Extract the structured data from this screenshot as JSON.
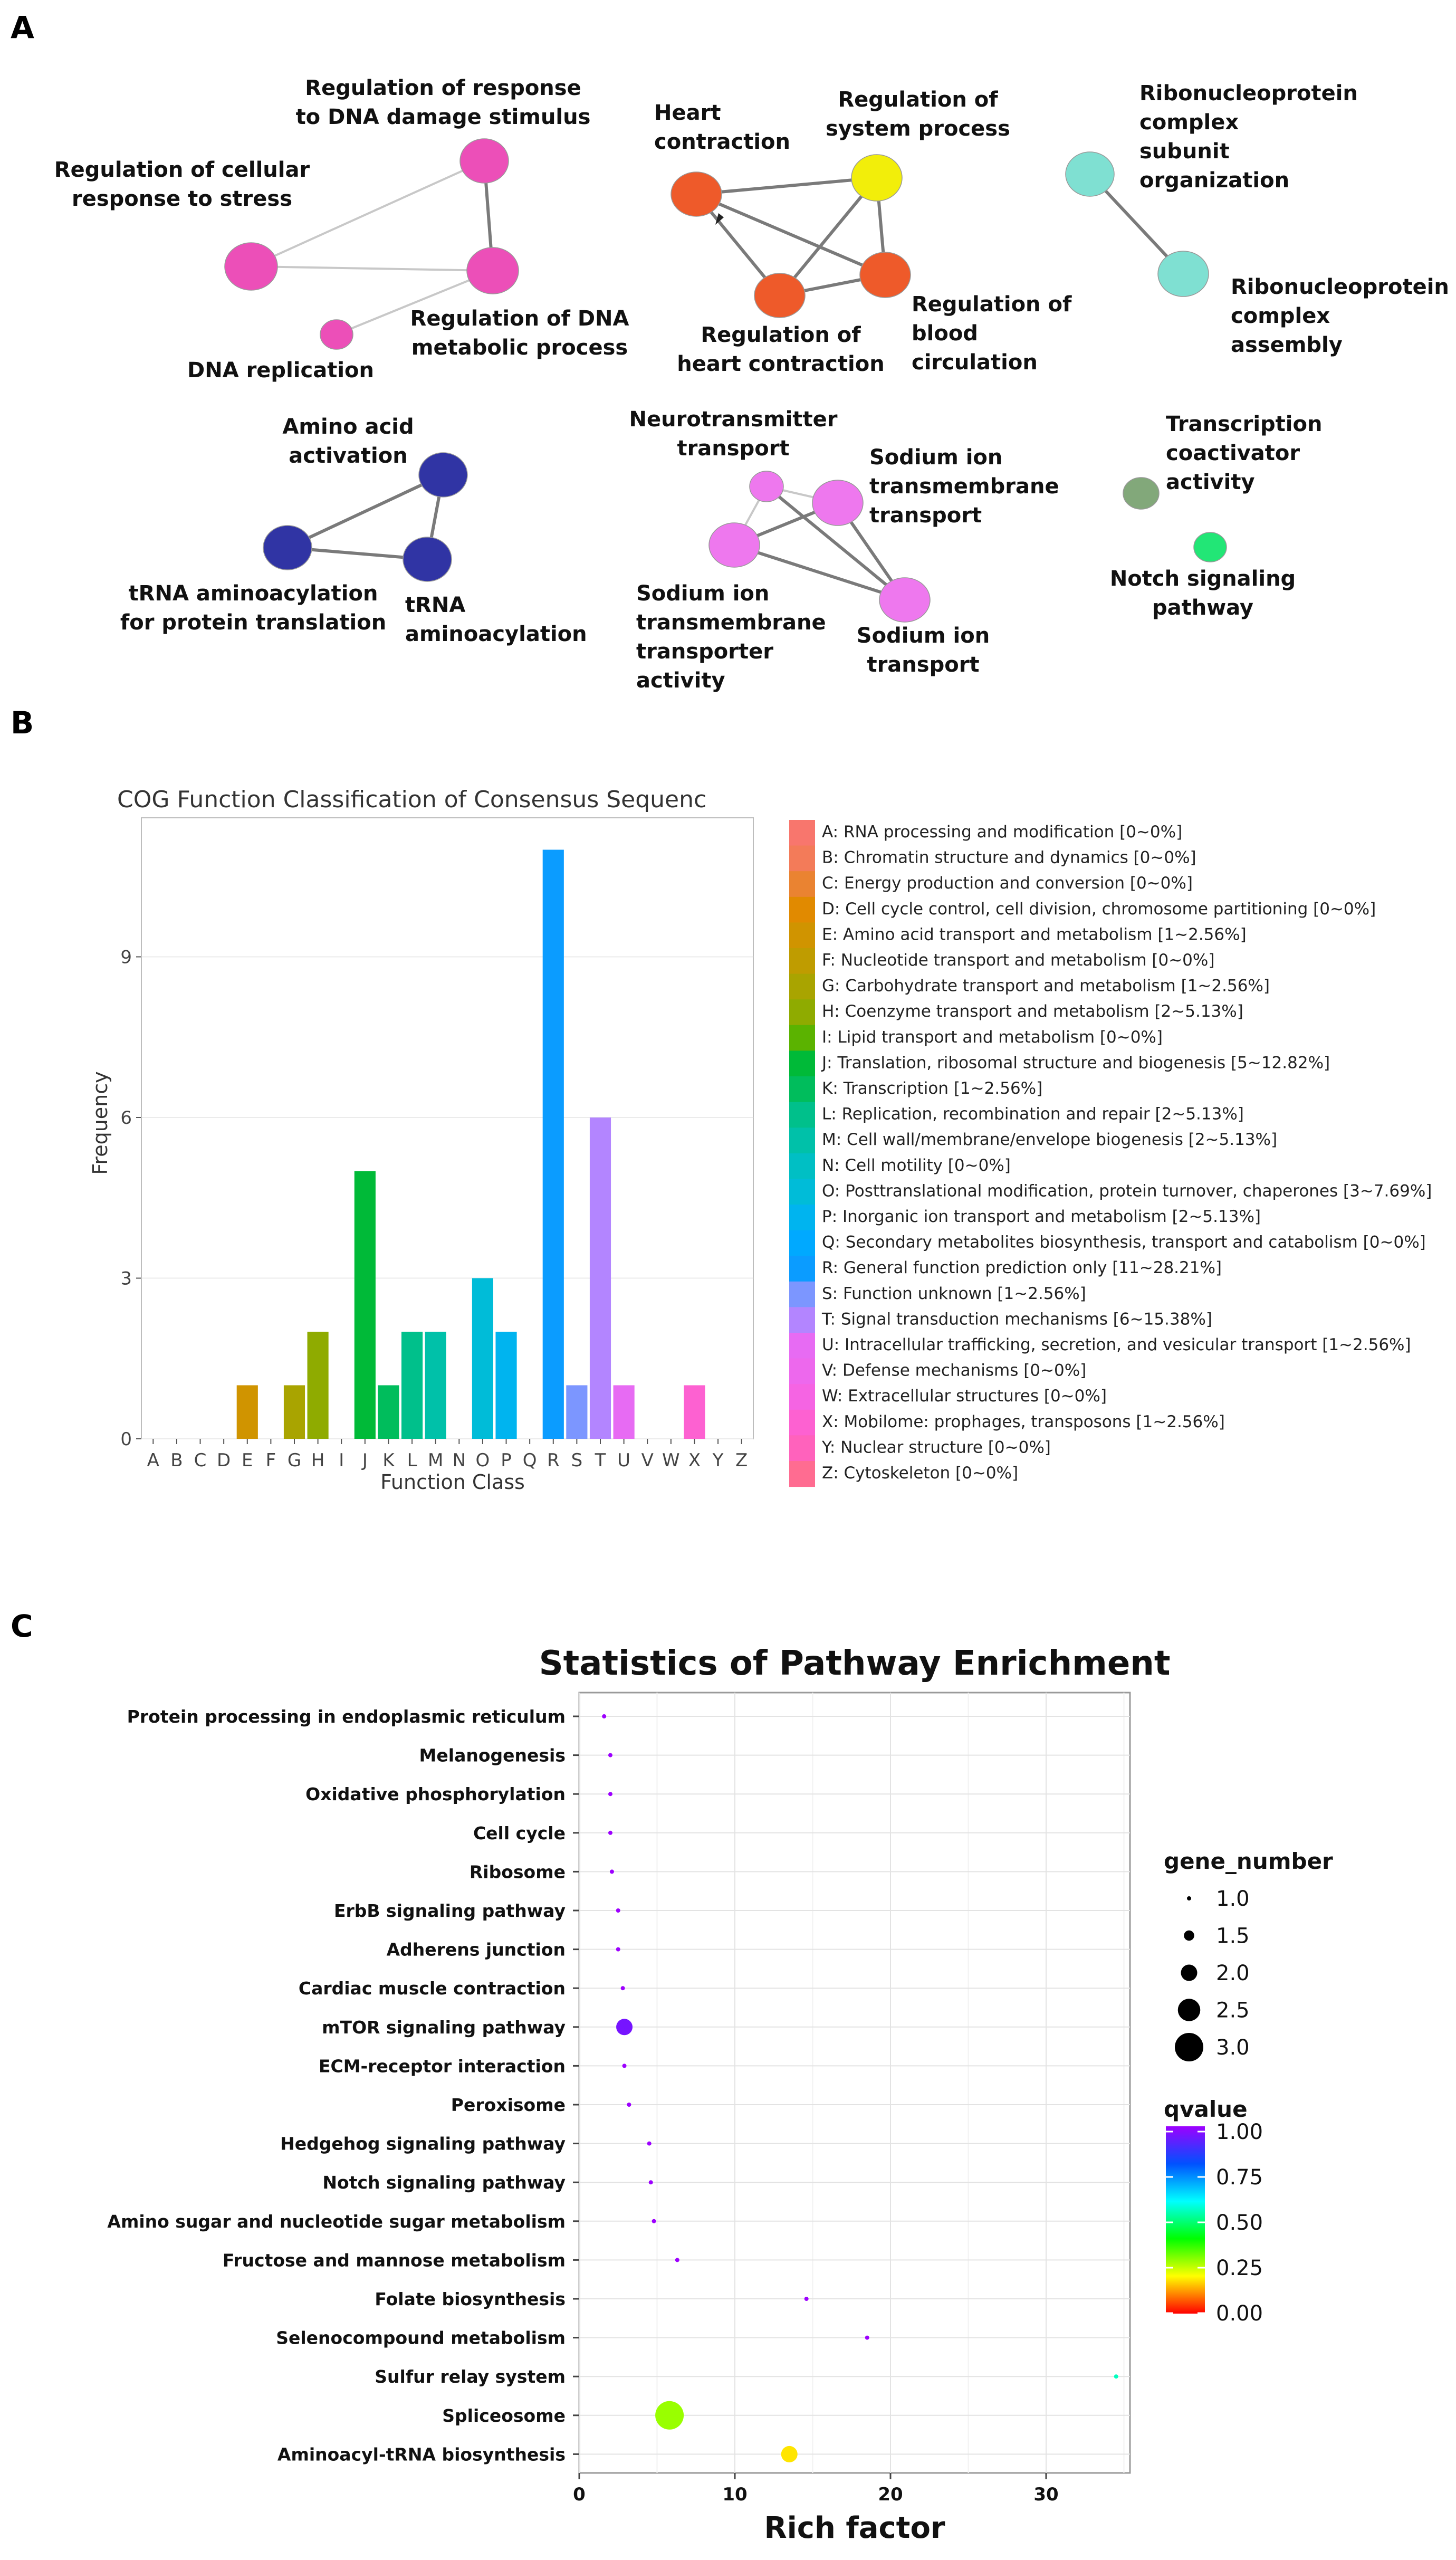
{
  "panels": {
    "a": "A",
    "b": "B",
    "c": "C"
  },
  "network": {
    "nodes": [
      {
        "id": "n1",
        "color": "#ec4fb8",
        "label": [
          "Regulation of response",
          "to DNA damage stimulus"
        ]
      },
      {
        "id": "n2",
        "color": "#ec4fb8",
        "label": [
          "Regulation of cellular",
          "response to stress"
        ]
      },
      {
        "id": "n3",
        "color": "#ec4fb8",
        "label": [
          "Regulation of DNA",
          "metabolic process"
        ]
      },
      {
        "id": "n4",
        "color": "#ec4fb8",
        "label": [
          "DNA replication"
        ]
      },
      {
        "id": "n5",
        "color": "#ee5a2a",
        "label": [
          "Heart",
          "contraction"
        ]
      },
      {
        "id": "n6",
        "color": "#f2ee0a",
        "label": [
          "Regulation of",
          "system process"
        ]
      },
      {
        "id": "n7",
        "color": "#ee5a2a",
        "label": [
          "Regulation of",
          "heart contraction"
        ]
      },
      {
        "id": "n8",
        "color": "#ee5a2a",
        "label": [
          "Regulation of",
          "blood",
          "circulation"
        ]
      },
      {
        "id": "n9",
        "color": "#7fe0d2",
        "label": [
          "Ribonucleoprotein",
          "complex",
          "subunit",
          "organization"
        ]
      },
      {
        "id": "n10",
        "color": "#7fe0d2",
        "label": [
          "Ribonucleoprotein",
          "complex",
          "assembly"
        ]
      },
      {
        "id": "n11",
        "color": "#3034a4",
        "label": [
          "Amino acid",
          "activation"
        ]
      },
      {
        "id": "n12",
        "color": "#3034a4",
        "label": [
          "tRNA aminoacylation",
          "for protein translation"
        ]
      },
      {
        "id": "n13",
        "color": "#3034a4",
        "label": [
          "tRNA",
          "aminoacylation"
        ]
      },
      {
        "id": "n14",
        "color": "#ee78ee",
        "label": [
          "Neurotransmitter",
          "transport"
        ]
      },
      {
        "id": "n15",
        "color": "#ee78ee",
        "label": [
          "Sodium ion",
          "transmembrane",
          "transport"
        ]
      },
      {
        "id": "n16",
        "color": "#ee78ee",
        "label": [
          "Sodium ion",
          "transmembrane",
          "transporter",
          "activity"
        ]
      },
      {
        "id": "n17",
        "color": "#ee78ee",
        "label": [
          "Sodium ion",
          "transport"
        ]
      },
      {
        "id": "n18",
        "color": "#82a87a",
        "label": [
          "Transcription",
          "coactivator",
          "activity"
        ]
      },
      {
        "id": "n19",
        "color": "#22e676",
        "label": [
          "Notch signaling",
          "pathway"
        ]
      }
    ],
    "edges": [
      [
        "n1",
        "n2"
      ],
      [
        "n1",
        "n3"
      ],
      [
        "n2",
        "n3"
      ],
      [
        "n3",
        "n4"
      ],
      [
        "n5",
        "n6"
      ],
      [
        "n5",
        "n7"
      ],
      [
        "n5",
        "n8"
      ],
      [
        "n6",
        "n7"
      ],
      [
        "n6",
        "n8"
      ],
      [
        "n7",
        "n8"
      ],
      [
        "n9",
        "n10"
      ],
      [
        "n11",
        "n12"
      ],
      [
        "n11",
        "n13"
      ],
      [
        "n12",
        "n13"
      ],
      [
        "n14",
        "n15"
      ],
      [
        "n14",
        "n16"
      ],
      [
        "n14",
        "n17"
      ],
      [
        "n15",
        "n16"
      ],
      [
        "n15",
        "n17"
      ],
      [
        "n16",
        "n17"
      ]
    ]
  },
  "chart_data": [
    {
      "type": "bar",
      "title": "COG Function Classification of Consensus Sequenc",
      "xlabel": "Function Class",
      "ylabel": "Frequency",
      "ylim": [
        0,
        11.5
      ],
      "yticks": [
        0,
        3,
        6,
        9
      ],
      "categories": [
        "A",
        "B",
        "C",
        "D",
        "E",
        "F",
        "G",
        "H",
        "I",
        "J",
        "K",
        "L",
        "M",
        "N",
        "O",
        "P",
        "Q",
        "R",
        "S",
        "T",
        "U",
        "V",
        "W",
        "X",
        "Y",
        "Z"
      ],
      "values": [
        0,
        0,
        0,
        0,
        1,
        0,
        1,
        2,
        0,
        5,
        1,
        2,
        2,
        0,
        3,
        2,
        0,
        11,
        1,
        6,
        1,
        0,
        0,
        1,
        0,
        0
      ],
      "colors": [
        "#f8766d",
        "#f37b59",
        "#ea8331",
        "#e18a00",
        "#d09400",
        "#bf9c00",
        "#a9a400",
        "#8fab00",
        "#5bb300",
        "#00ba38",
        "#00bd5c",
        "#00c08b",
        "#00c1a9",
        "#00bfc4",
        "#00bcd8",
        "#00b4ef",
        "#00a9ff",
        "#0b9cff",
        "#7c96ff",
        "#b385ff",
        "#e76bf3",
        "#ed68ed",
        "#f564e3",
        "#fd61d1",
        "#ff62bc",
        "#ff6c91"
      ],
      "legend": [
        "A: RNA processing and modification [0~0%]",
        "B: Chromatin structure and dynamics [0~0%]",
        "C: Energy production and conversion [0~0%]",
        "D: Cell cycle control, cell division, chromosome partitioning [0~0%]",
        "E: Amino acid transport and metabolism [1~2.56%]",
        "F: Nucleotide transport and metabolism [0~0%]",
        "G: Carbohydrate transport and metabolism [1~2.56%]",
        "H: Coenzyme transport and metabolism [2~5.13%]",
        "I: Lipid transport and metabolism [0~0%]",
        "J: Translation, ribosomal structure and biogenesis [5~12.82%]",
        "K: Transcription [1~2.56%]",
        "L: Replication, recombination and repair [2~5.13%]",
        "M: Cell wall/membrane/envelope biogenesis [2~5.13%]",
        "N: Cell motility [0~0%]",
        "O: Posttranslational modification, protein turnover, chaperones [3~7.69%]",
        "P: Inorganic ion transport and metabolism [2~5.13%]",
        "Q: Secondary metabolites biosynthesis, transport and catabolism [0~0%]",
        "R: General function prediction only [11~28.21%]",
        "S: Function unknown [1~2.56%]",
        "T: Signal transduction mechanisms [6~15.38%]",
        "U: Intracellular trafficking, secretion, and vesicular transport [1~2.56%]",
        "V: Defense mechanisms [0~0%]",
        "W: Extracellular structures [0~0%]",
        "X: Mobilome: prophages, transposons [1~2.56%]",
        "Y: Nuclear structure [0~0%]",
        "Z: Cytoskeleton [0~0%]"
      ]
    },
    {
      "type": "scatter",
      "title": "Statistics of Pathway Enrichment",
      "xlabel": "Rich factor",
      "xlim": [
        0,
        36
      ],
      "xticks": [
        0,
        10,
        20,
        30
      ],
      "categories": [
        "Protein processing in endoplasmic reticulum",
        "Melanogenesis",
        "Oxidative phosphorylation",
        "Cell cycle",
        "Ribosome",
        "ErbB signaling pathway",
        "Adherens junction",
        "Cardiac muscle contraction",
        "mTOR signaling pathway",
        "ECM-receptor interaction",
        "Peroxisome",
        "Hedgehog signaling pathway",
        "Notch signaling pathway",
        "Amino sugar and nucleotide sugar metabolism",
        "Fructose and mannose metabolism",
        "Folate biosynthesis",
        "Selenocompound metabolism",
        "Sulfur relay system",
        "Spliceosome",
        "Aminoacyl-tRNA biosynthesis"
      ],
      "x": [
        1.6,
        2.0,
        2.0,
        2.0,
        2.1,
        2.5,
        2.5,
        2.8,
        2.9,
        2.9,
        3.2,
        4.5,
        4.6,
        4.8,
        6.3,
        14.6,
        18.5,
        34.5,
        5.8,
        13.5
      ],
      "gene_number": [
        1,
        1,
        1,
        1,
        1,
        1,
        1,
        1,
        2,
        1,
        1,
        1,
        1,
        1,
        1,
        1,
        1,
        1,
        3,
        2
      ],
      "qvalue": [
        1.0,
        1.0,
        1.0,
        1.0,
        1.0,
        1.0,
        1.0,
        1.0,
        0.95,
        1.0,
        1.0,
        1.0,
        1.0,
        1.0,
        1.0,
        1.0,
        1.0,
        0.55,
        0.28,
        0.18
      ],
      "legend_size": {
        "title": "gene_number",
        "values": [
          1.0,
          1.5,
          2.0,
          2.5,
          3.0
        ],
        "labels": [
          "1.0",
          "1.5",
          "2.0",
          "2.5",
          "3.0"
        ]
      },
      "legend_color": {
        "title": "qvalue",
        "labels": [
          "1.00",
          "0.75",
          "0.50",
          "0.25",
          "0.00"
        ],
        "colors": [
          "#9d00ff",
          "#0051ff",
          "#00ffff",
          "#00ff00",
          "#ffff00",
          "#ff0000"
        ]
      }
    }
  ]
}
